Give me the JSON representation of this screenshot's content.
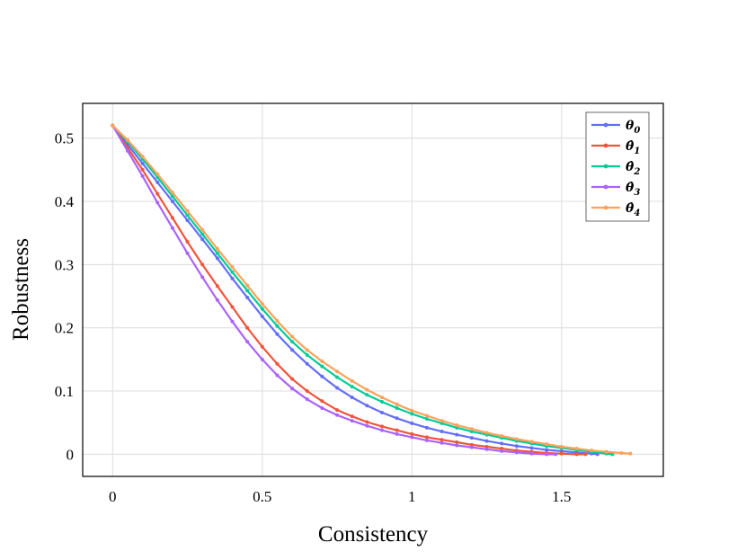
{
  "chart_data": {
    "type": "line",
    "title": "",
    "xlabel": "Consistency",
    "ylabel": "Robustness",
    "xlim": [
      -0.1,
      1.84
    ],
    "ylim": [
      -0.035,
      0.555
    ],
    "xticks": [
      0,
      0.5,
      1,
      1.5
    ],
    "xtick_labels": [
      "0",
      "0.5",
      "1",
      "1.5"
    ],
    "yticks": [
      0,
      0.1,
      0.2,
      0.3,
      0.4,
      0.5
    ],
    "ytick_labels": [
      "0",
      "0.1",
      "0.2",
      "0.3",
      "0.4",
      "0.5"
    ],
    "grid": true,
    "legend_position": "top-right",
    "series": [
      {
        "name": "θ0",
        "legend_base": "θ",
        "legend_sub": "0",
        "legend_hat": false,
        "color": "#636efa",
        "x": [
          0,
          0.05,
          0.1,
          0.15,
          0.2,
          0.25,
          0.3,
          0.35,
          0.4,
          0.45,
          0.5,
          0.55,
          0.6,
          0.65,
          0.7,
          0.75,
          0.8,
          0.85,
          0.9,
          0.95,
          1.0,
          1.05,
          1.1,
          1.15,
          1.2,
          1.25,
          1.3,
          1.35,
          1.4,
          1.45,
          1.5,
          1.55,
          1.6,
          1.62
        ],
        "y": [
          0.52,
          0.49,
          0.46,
          0.43,
          0.4,
          0.37,
          0.34,
          0.31,
          0.278,
          0.248,
          0.218,
          0.19,
          0.165,
          0.143,
          0.123,
          0.105,
          0.09,
          0.077,
          0.066,
          0.057,
          0.049,
          0.042,
          0.036,
          0.031,
          0.026,
          0.021,
          0.017,
          0.013,
          0.01,
          0.007,
          0.005,
          0.003,
          0.001,
          0
        ]
      },
      {
        "name": "θ̂1",
        "legend_base": "θ",
        "legend_sub": "1",
        "legend_hat": true,
        "color": "#ef553b",
        "x": [
          0,
          0.05,
          0.1,
          0.15,
          0.2,
          0.25,
          0.3,
          0.35,
          0.4,
          0.45,
          0.5,
          0.55,
          0.6,
          0.65,
          0.7,
          0.75,
          0.8,
          0.85,
          0.9,
          0.95,
          1.0,
          1.05,
          1.1,
          1.15,
          1.2,
          1.25,
          1.3,
          1.35,
          1.4,
          1.45,
          1.5,
          1.55,
          1.58
        ],
        "y": [
          0.52,
          0.485,
          0.45,
          0.412,
          0.374,
          0.336,
          0.3,
          0.266,
          0.233,
          0.2,
          0.17,
          0.143,
          0.119,
          0.1,
          0.084,
          0.07,
          0.06,
          0.051,
          0.044,
          0.038,
          0.032,
          0.027,
          0.023,
          0.019,
          0.015,
          0.012,
          0.009,
          0.006,
          0.004,
          0.002,
          0.001,
          0,
          0
        ]
      },
      {
        "name": "θ̂2",
        "legend_base": "θ",
        "legend_sub": "2",
        "legend_hat": true,
        "color": "#00cc96",
        "x": [
          0,
          0.05,
          0.1,
          0.15,
          0.2,
          0.25,
          0.3,
          0.35,
          0.4,
          0.45,
          0.5,
          0.55,
          0.6,
          0.65,
          0.7,
          0.75,
          0.8,
          0.85,
          0.9,
          0.95,
          1.0,
          1.05,
          1.1,
          1.15,
          1.2,
          1.25,
          1.3,
          1.35,
          1.4,
          1.45,
          1.5,
          1.55,
          1.6,
          1.65,
          1.67
        ],
        "y": [
          0.52,
          0.495,
          0.467,
          0.438,
          0.408,
          0.378,
          0.348,
          0.318,
          0.288,
          0.259,
          0.23,
          0.203,
          0.178,
          0.157,
          0.139,
          0.122,
          0.107,
          0.094,
          0.083,
          0.073,
          0.064,
          0.056,
          0.049,
          0.042,
          0.036,
          0.031,
          0.026,
          0.021,
          0.017,
          0.013,
          0.01,
          0.007,
          0.004,
          0.001,
          0
        ]
      },
      {
        "name": "θ̂3",
        "legend_base": "θ",
        "legend_sub": "3",
        "legend_hat": true,
        "color": "#ab63fa",
        "x": [
          0,
          0.05,
          0.1,
          0.15,
          0.2,
          0.25,
          0.3,
          0.35,
          0.4,
          0.45,
          0.5,
          0.55,
          0.6,
          0.65,
          0.7,
          0.75,
          0.8,
          0.85,
          0.9,
          0.95,
          1.0,
          1.05,
          1.1,
          1.15,
          1.2,
          1.25,
          1.3,
          1.35,
          1.4,
          1.45,
          1.48
        ],
        "y": [
          0.52,
          0.48,
          0.44,
          0.398,
          0.358,
          0.318,
          0.28,
          0.244,
          0.21,
          0.178,
          0.15,
          0.125,
          0.104,
          0.087,
          0.073,
          0.062,
          0.053,
          0.045,
          0.038,
          0.032,
          0.027,
          0.022,
          0.018,
          0.014,
          0.011,
          0.008,
          0.005,
          0.003,
          0.001,
          0,
          0
        ]
      },
      {
        "name": "θ̂4",
        "legend_base": "θ",
        "legend_sub": "4",
        "legend_hat": true,
        "color": "#ffa15a",
        "x": [
          0,
          0.05,
          0.1,
          0.15,
          0.2,
          0.25,
          0.3,
          0.35,
          0.4,
          0.45,
          0.5,
          0.55,
          0.6,
          0.65,
          0.7,
          0.75,
          0.8,
          0.85,
          0.9,
          0.95,
          1.0,
          1.05,
          1.1,
          1.15,
          1.2,
          1.25,
          1.3,
          1.35,
          1.4,
          1.45,
          1.5,
          1.55,
          1.6,
          1.65,
          1.7,
          1.73
        ],
        "y": [
          0.52,
          0.497,
          0.471,
          0.443,
          0.414,
          0.385,
          0.355,
          0.325,
          0.296,
          0.267,
          0.238,
          0.211,
          0.186,
          0.165,
          0.147,
          0.131,
          0.116,
          0.102,
          0.09,
          0.079,
          0.069,
          0.061,
          0.053,
          0.046,
          0.04,
          0.034,
          0.029,
          0.024,
          0.02,
          0.016,
          0.012,
          0.009,
          0.006,
          0.004,
          0.002,
          0.001
        ]
      }
    ]
  }
}
